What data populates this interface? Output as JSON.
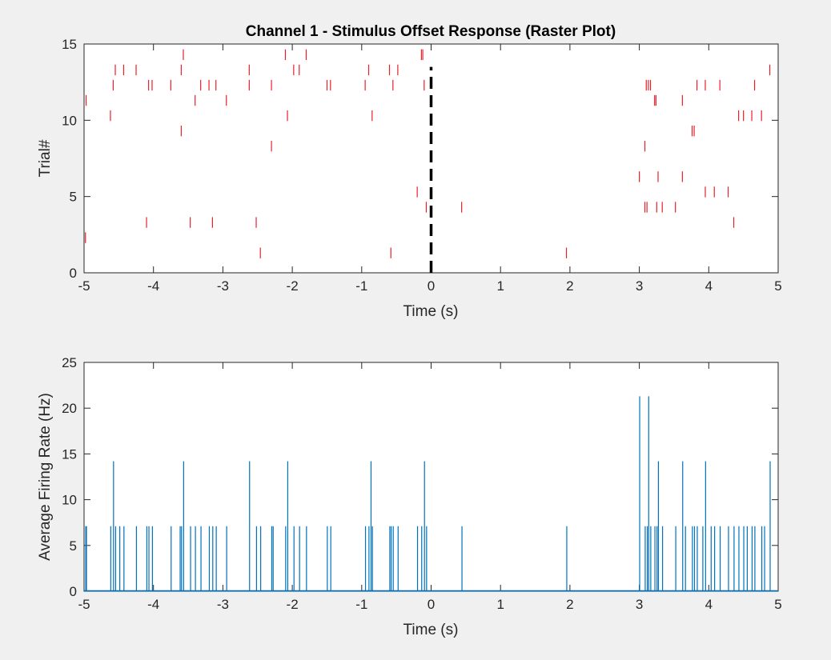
{
  "chart_data": [
    {
      "type": "scatter",
      "subtype": "raster",
      "title": "Channel 1 - Stimulus Offset Response (Raster Plot)",
      "xlabel": "Time (s)",
      "ylabel": "Trial#",
      "xlim": [
        -5,
        5
      ],
      "ylim": [
        0,
        15
      ],
      "xticks": [
        -5,
        -4,
        -3,
        -2,
        -1,
        0,
        1,
        2,
        3,
        4,
        5
      ],
      "yticks": [
        0,
        5,
        10,
        15
      ],
      "tick_color": "#e8202a",
      "stimulus_line": {
        "x": 0,
        "y": [
          0,
          13.5
        ],
        "color": "#000000",
        "style": "dashed"
      },
      "spikes": [
        {
          "x": -4.97,
          "y": 11
        },
        {
          "x": -4.98,
          "y": 2
        },
        {
          "x": -4.62,
          "y": 10
        },
        {
          "x": -4.58,
          "y": 12
        },
        {
          "x": -4.55,
          "y": 13
        },
        {
          "x": -4.43,
          "y": 13
        },
        {
          "x": -4.25,
          "y": 13
        },
        {
          "x": -4.07,
          "y": 12
        },
        {
          "x": -4.02,
          "y": 12
        },
        {
          "x": -4.1,
          "y": 3
        },
        {
          "x": -3.75,
          "y": 12
        },
        {
          "x": -3.6,
          "y": 13
        },
        {
          "x": -3.57,
          "y": 14
        },
        {
          "x": -3.6,
          "y": 9
        },
        {
          "x": -3.47,
          "y": 3
        },
        {
          "x": -3.4,
          "y": 11
        },
        {
          "x": -3.32,
          "y": 12
        },
        {
          "x": -3.2,
          "y": 12
        },
        {
          "x": -3.15,
          "y": 3
        },
        {
          "x": -3.1,
          "y": 12
        },
        {
          "x": -2.95,
          "y": 11
        },
        {
          "x": -2.62,
          "y": 13
        },
        {
          "x": -2.62,
          "y": 12
        },
        {
          "x": -2.52,
          "y": 3
        },
        {
          "x": -2.46,
          "y": 1
        },
        {
          "x": -2.3,
          "y": 12
        },
        {
          "x": -2.3,
          "y": 8
        },
        {
          "x": -2.1,
          "y": 14
        },
        {
          "x": -2.07,
          "y": 10
        },
        {
          "x": -1.98,
          "y": 13
        },
        {
          "x": -1.9,
          "y": 13
        },
        {
          "x": -1.8,
          "y": 14
        },
        {
          "x": -1.5,
          "y": 12
        },
        {
          "x": -1.45,
          "y": 12
        },
        {
          "x": -0.95,
          "y": 12
        },
        {
          "x": -0.9,
          "y": 13
        },
        {
          "x": -0.85,
          "y": 10
        },
        {
          "x": -0.6,
          "y": 13
        },
        {
          "x": -0.58,
          "y": 1
        },
        {
          "x": -0.55,
          "y": 12
        },
        {
          "x": -0.48,
          "y": 13
        },
        {
          "x": -0.2,
          "y": 5
        },
        {
          "x": -0.14,
          "y": 14
        },
        {
          "x": -0.12,
          "y": 14
        },
        {
          "x": -0.1,
          "y": 12
        },
        {
          "x": -0.07,
          "y": 4
        },
        {
          "x": 0.44,
          "y": 4
        },
        {
          "x": 1.95,
          "y": 1
        },
        {
          "x": 3.0,
          "y": 6
        },
        {
          "x": 3.08,
          "y": 8
        },
        {
          "x": 3.08,
          "y": 4
        },
        {
          "x": 3.11,
          "y": 4
        },
        {
          "x": 3.1,
          "y": 12
        },
        {
          "x": 3.13,
          "y": 12
        },
        {
          "x": 3.16,
          "y": 12
        },
        {
          "x": 3.22,
          "y": 11
        },
        {
          "x": 3.24,
          "y": 11
        },
        {
          "x": 3.25,
          "y": 4
        },
        {
          "x": 3.27,
          "y": 6
        },
        {
          "x": 3.33,
          "y": 4
        },
        {
          "x": 3.52,
          "y": 4
        },
        {
          "x": 3.62,
          "y": 11
        },
        {
          "x": 3.62,
          "y": 6
        },
        {
          "x": 3.76,
          "y": 9
        },
        {
          "x": 3.79,
          "y": 9
        },
        {
          "x": 3.83,
          "y": 12
        },
        {
          "x": 3.95,
          "y": 12
        },
        {
          "x": 3.95,
          "y": 5
        },
        {
          "x": 4.08,
          "y": 5
        },
        {
          "x": 4.16,
          "y": 12
        },
        {
          "x": 4.28,
          "y": 5
        },
        {
          "x": 4.36,
          "y": 3
        },
        {
          "x": 4.43,
          "y": 10
        },
        {
          "x": 4.5,
          "y": 10
        },
        {
          "x": 4.62,
          "y": 10
        },
        {
          "x": 4.66,
          "y": 12
        },
        {
          "x": 4.76,
          "y": 10
        },
        {
          "x": 4.88,
          "y": 13
        }
      ]
    },
    {
      "type": "bar",
      "subtype": "histogram",
      "xlabel": "Time (s)",
      "ylabel": "Average Firing Rate (Hz)",
      "xlim": [
        -5,
        5
      ],
      "ylim": [
        0,
        25
      ],
      "xticks": [
        -5,
        -4,
        -3,
        -2,
        -1,
        0,
        1,
        2,
        3,
        4,
        5
      ],
      "yticks": [
        0,
        5,
        10,
        15,
        20,
        25
      ],
      "bin_width_s": 0.0047,
      "bar_color": "#0072bd",
      "bins": [
        {
          "x": -4.98,
          "y": 7.1
        },
        {
          "x": -4.97,
          "y": 7.1
        },
        {
          "x": -4.62,
          "y": 7.1
        },
        {
          "x": -4.58,
          "y": 14.2
        },
        {
          "x": -4.55,
          "y": 7.1
        },
        {
          "x": -4.49,
          "y": 7.1
        },
        {
          "x": -4.43,
          "y": 7.1
        },
        {
          "x": -4.25,
          "y": 7.1
        },
        {
          "x": -4.1,
          "y": 7.1
        },
        {
          "x": -4.07,
          "y": 7.1
        },
        {
          "x": -4.02,
          "y": 7.1
        },
        {
          "x": -3.75,
          "y": 7.1
        },
        {
          "x": -3.62,
          "y": 7.1
        },
        {
          "x": -3.6,
          "y": 7.1
        },
        {
          "x": -3.57,
          "y": 14.2
        },
        {
          "x": -3.47,
          "y": 7.1
        },
        {
          "x": -3.4,
          "y": 7.1
        },
        {
          "x": -3.32,
          "y": 7.1
        },
        {
          "x": -3.2,
          "y": 7.1
        },
        {
          "x": -3.15,
          "y": 7.1
        },
        {
          "x": -3.1,
          "y": 7.1
        },
        {
          "x": -2.95,
          "y": 7.1
        },
        {
          "x": -2.62,
          "y": 14.2
        },
        {
          "x": -2.52,
          "y": 7.1
        },
        {
          "x": -2.46,
          "y": 7.1
        },
        {
          "x": -2.3,
          "y": 7.1
        },
        {
          "x": -2.28,
          "y": 7.1
        },
        {
          "x": -2.1,
          "y": 7.1
        },
        {
          "x": -2.07,
          "y": 14.2
        },
        {
          "x": -1.98,
          "y": 7.1
        },
        {
          "x": -1.9,
          "y": 7.1
        },
        {
          "x": -1.8,
          "y": 7.1
        },
        {
          "x": -1.5,
          "y": 7.1
        },
        {
          "x": -1.45,
          "y": 7.1
        },
        {
          "x": -0.95,
          "y": 7.1
        },
        {
          "x": -0.9,
          "y": 7.1
        },
        {
          "x": -0.87,
          "y": 14.2
        },
        {
          "x": -0.85,
          "y": 7.1
        },
        {
          "x": -0.6,
          "y": 7.1
        },
        {
          "x": -0.58,
          "y": 7.1
        },
        {
          "x": -0.55,
          "y": 7.1
        },
        {
          "x": -0.48,
          "y": 7.1
        },
        {
          "x": -0.2,
          "y": 7.1
        },
        {
          "x": -0.14,
          "y": 7.1
        },
        {
          "x": -0.1,
          "y": 14.2
        },
        {
          "x": -0.07,
          "y": 7.1
        },
        {
          "x": 0.44,
          "y": 7.1
        },
        {
          "x": 1.95,
          "y": 7.1
        },
        {
          "x": 3.0,
          "y": 21.3
        },
        {
          "x": 3.08,
          "y": 7.1
        },
        {
          "x": 3.11,
          "y": 7.1
        },
        {
          "x": 3.13,
          "y": 21.3
        },
        {
          "x": 3.16,
          "y": 7.1
        },
        {
          "x": 3.22,
          "y": 7.1
        },
        {
          "x": 3.25,
          "y": 7.1
        },
        {
          "x": 3.27,
          "y": 14.2
        },
        {
          "x": 3.33,
          "y": 7.1
        },
        {
          "x": 3.52,
          "y": 7.1
        },
        {
          "x": 3.62,
          "y": 14.2
        },
        {
          "x": 3.66,
          "y": 7.1
        },
        {
          "x": 3.76,
          "y": 7.1
        },
        {
          "x": 3.79,
          "y": 7.1
        },
        {
          "x": 3.83,
          "y": 7.1
        },
        {
          "x": 3.91,
          "y": 7.1
        },
        {
          "x": 3.95,
          "y": 14.2
        },
        {
          "x": 4.03,
          "y": 7.1
        },
        {
          "x": 4.08,
          "y": 7.1
        },
        {
          "x": 4.16,
          "y": 7.1
        },
        {
          "x": 4.28,
          "y": 7.1
        },
        {
          "x": 4.36,
          "y": 7.1
        },
        {
          "x": 4.43,
          "y": 7.1
        },
        {
          "x": 4.5,
          "y": 7.1
        },
        {
          "x": 4.55,
          "y": 7.1
        },
        {
          "x": 4.62,
          "y": 7.1
        },
        {
          "x": 4.66,
          "y": 7.1
        },
        {
          "x": 4.76,
          "y": 7.1
        },
        {
          "x": 4.8,
          "y": 7.1
        },
        {
          "x": 4.88,
          "y": 14.2
        }
      ]
    }
  ]
}
